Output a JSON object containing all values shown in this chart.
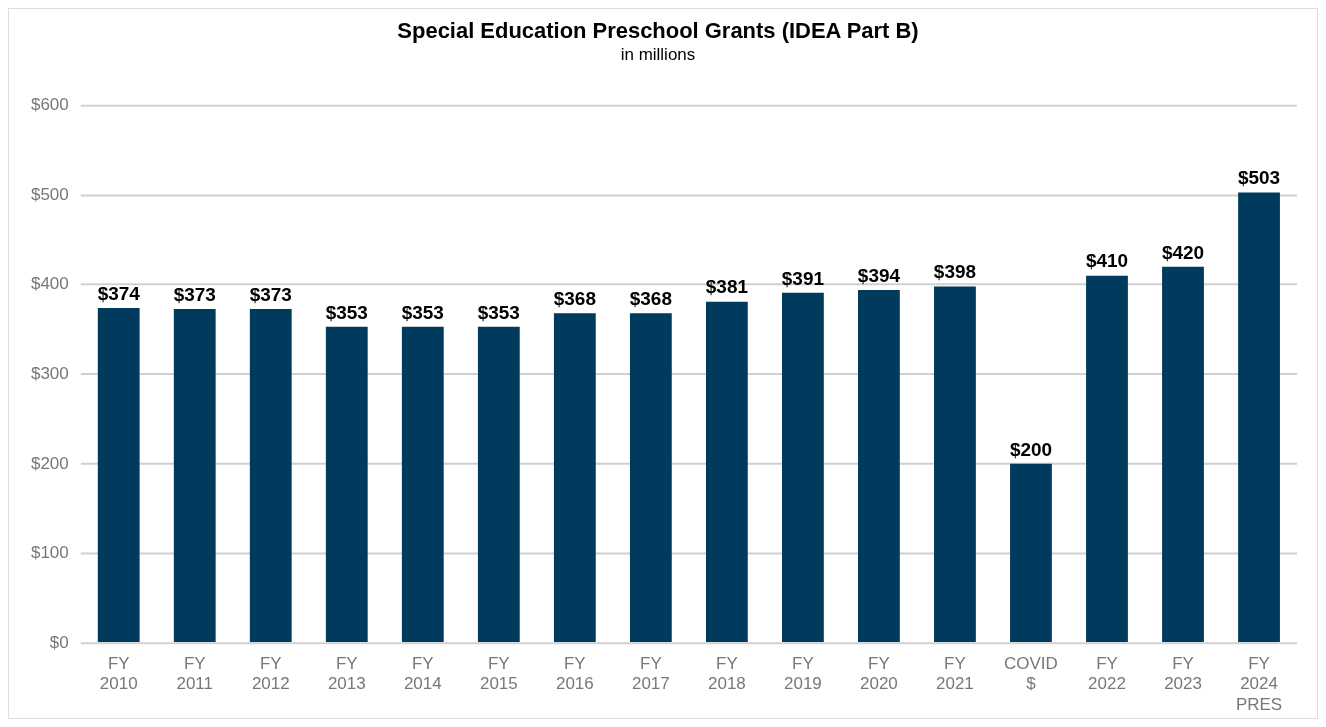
{
  "chart_data": {
    "type": "bar",
    "title": "Special Education Preschool Grants (IDEA Part B)",
    "subtitle": "in millions",
    "categories": [
      "FY 2010",
      "FY 2011",
      "FY 2012",
      "FY 2013",
      "FY 2014",
      "FY 2015",
      "FY 2016",
      "FY 2017",
      "FY 2018",
      "FY 2019",
      "FY 2020",
      "FY 2021",
      "COVID $",
      "FY 2022",
      "FY 2023",
      "FY 2024 PRES"
    ],
    "values": [
      374,
      373,
      373,
      353,
      353,
      353,
      368,
      368,
      381,
      391,
      394,
      398,
      200,
      410,
      420,
      503
    ],
    "value_labels": [
      "$374",
      "$373",
      "$373",
      "$353",
      "$353",
      "$353",
      "$368",
      "$368",
      "$381",
      "$391",
      "$394",
      "$398",
      "$200",
      "$410",
      "$420",
      "$503"
    ],
    "color": "#003a5c",
    "ylim": [
      0,
      600
    ],
    "yticks": [
      {
        "value": 0,
        "label": "$0"
      },
      {
        "value": 100,
        "label": "$100"
      },
      {
        "value": 200,
        "label": "$200"
      },
      {
        "value": 300,
        "label": "$300"
      },
      {
        "value": 400,
        "label": "$400"
      },
      {
        "value": 500,
        "label": "$500"
      },
      {
        "value": 600,
        "label": "$600"
      }
    ],
    "grid": "y",
    "legend": false
  }
}
